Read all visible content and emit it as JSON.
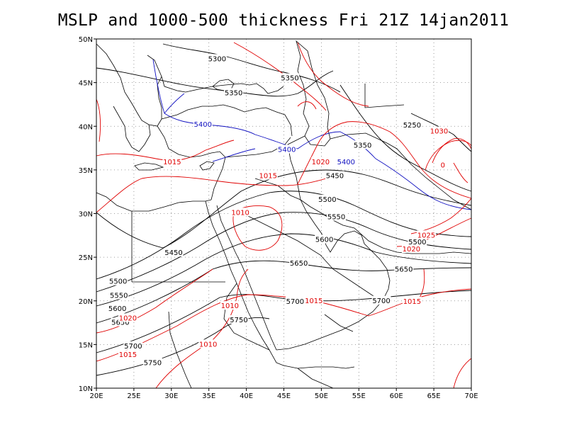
{
  "title": "MSLP and 1000-500 thickness Fri 21Z 14jan2011",
  "colors": {
    "pressure": "#e00000",
    "thickness": "#000000",
    "thickness_5400": "#1010c0",
    "coast": "#000000",
    "grid": "#808080"
  },
  "map": {
    "lon_range": [
      20,
      70
    ],
    "lat_range": [
      10,
      50
    ],
    "grid": "dotted",
    "lon_ticks": [
      {
        "lon": 20,
        "label": "20E"
      },
      {
        "lon": 25,
        "label": "25E"
      },
      {
        "lon": 30,
        "label": "30E"
      },
      {
        "lon": 35,
        "label": "35E"
      },
      {
        "lon": 40,
        "label": "40E"
      },
      {
        "lon": 45,
        "label": "45E"
      },
      {
        "lon": 50,
        "label": "50E"
      },
      {
        "lon": 55,
        "label": "55E"
      },
      {
        "lon": 60,
        "label": "60E"
      },
      {
        "lon": 65,
        "label": "65E"
      },
      {
        "lon": 70,
        "label": "70E"
      }
    ],
    "lat_ticks": [
      {
        "lat": 10,
        "label": "10N"
      },
      {
        "lat": 15,
        "label": "15N"
      },
      {
        "lat": 20,
        "label": "20N"
      },
      {
        "lat": 25,
        "label": "25N"
      },
      {
        "lat": 30,
        "label": "30N"
      },
      {
        "lat": 35,
        "label": "35N"
      },
      {
        "lat": 40,
        "label": "40N"
      },
      {
        "lat": 45,
        "label": "45N"
      },
      {
        "lat": 50,
        "label": "50N"
      }
    ],
    "thickness_labels": [
      {
        "text": "5300",
        "lon": 36.1,
        "lat": 47.7
      },
      {
        "text": "5350",
        "lon": 45.8,
        "lat": 45.5
      },
      {
        "text": "5350",
        "lon": 38.3,
        "lat": 43.8
      },
      {
        "text": "5400",
        "lon": 34.2,
        "lat": 40.2,
        "blue": true
      },
      {
        "text": "5400",
        "lon": 45.4,
        "lat": 37.3,
        "blue": true
      },
      {
        "text": "5400",
        "lon": 53.3,
        "lat": 35.9,
        "blue": true
      },
      {
        "text": "5350",
        "lon": 55.5,
        "lat": 37.8
      },
      {
        "text": "5250",
        "lon": 62.1,
        "lat": 40.1
      },
      {
        "text": "5450",
        "lon": 51.8,
        "lat": 34.3
      },
      {
        "text": "5500",
        "lon": 50.8,
        "lat": 31.6
      },
      {
        "text": "5550",
        "lon": 52.0,
        "lat": 29.6
      },
      {
        "text": "5600",
        "lon": 50.4,
        "lat": 27.0
      },
      {
        "text": "5500",
        "lon": 62.8,
        "lat": 26.7
      },
      {
        "text": "5450",
        "lon": 30.3,
        "lat": 25.5
      },
      {
        "text": "5650",
        "lon": 47.0,
        "lat": 24.3
      },
      {
        "text": "5650",
        "lon": 61.0,
        "lat": 23.6
      },
      {
        "text": "5500",
        "lon": 22.9,
        "lat": 22.2
      },
      {
        "text": "5550",
        "lon": 23.0,
        "lat": 20.6
      },
      {
        "text": "5600",
        "lon": 22.8,
        "lat": 19.1
      },
      {
        "text": "5700",
        "lon": 46.5,
        "lat": 19.9
      },
      {
        "text": "5700",
        "lon": 58.0,
        "lat": 20.0
      },
      {
        "text": "5650",
        "lon": 23.2,
        "lat": 17.5
      },
      {
        "text": "5750",
        "lon": 39.0,
        "lat": 17.8
      },
      {
        "text": "5700",
        "lon": 24.9,
        "lat": 14.8
      },
      {
        "text": "5750",
        "lon": 27.5,
        "lat": 12.9
      }
    ],
    "pressure_labels": [
      {
        "text": "1015",
        "lon": 30.1,
        "lat": 35.9
      },
      {
        "text": "1015",
        "lon": 42.9,
        "lat": 34.3
      },
      {
        "text": "1020",
        "lon": 49.9,
        "lat": 35.9
      },
      {
        "text": "1030",
        "lon": 65.7,
        "lat": 39.4
      },
      {
        "text": "1010",
        "lon": 39.2,
        "lat": 30.1
      },
      {
        "text": "1025",
        "lon": 64.0,
        "lat": 27.5
      },
      {
        "text": "1020",
        "lon": 62.0,
        "lat": 25.9
      },
      {
        "text": "1015",
        "lon": 49.0,
        "lat": 20.0
      },
      {
        "text": "1015",
        "lon": 62.1,
        "lat": 19.9
      },
      {
        "text": "1010",
        "lon": 37.8,
        "lat": 19.4
      },
      {
        "text": "1020",
        "lon": 24.2,
        "lat": 18.0
      },
      {
        "text": "1010",
        "lon": 34.9,
        "lat": 15.0
      },
      {
        "text": "1015",
        "lon": 24.2,
        "lat": 13.8
      },
      {
        "text": "0",
        "lon": 66.2,
        "lat": 35.5
      }
    ]
  }
}
